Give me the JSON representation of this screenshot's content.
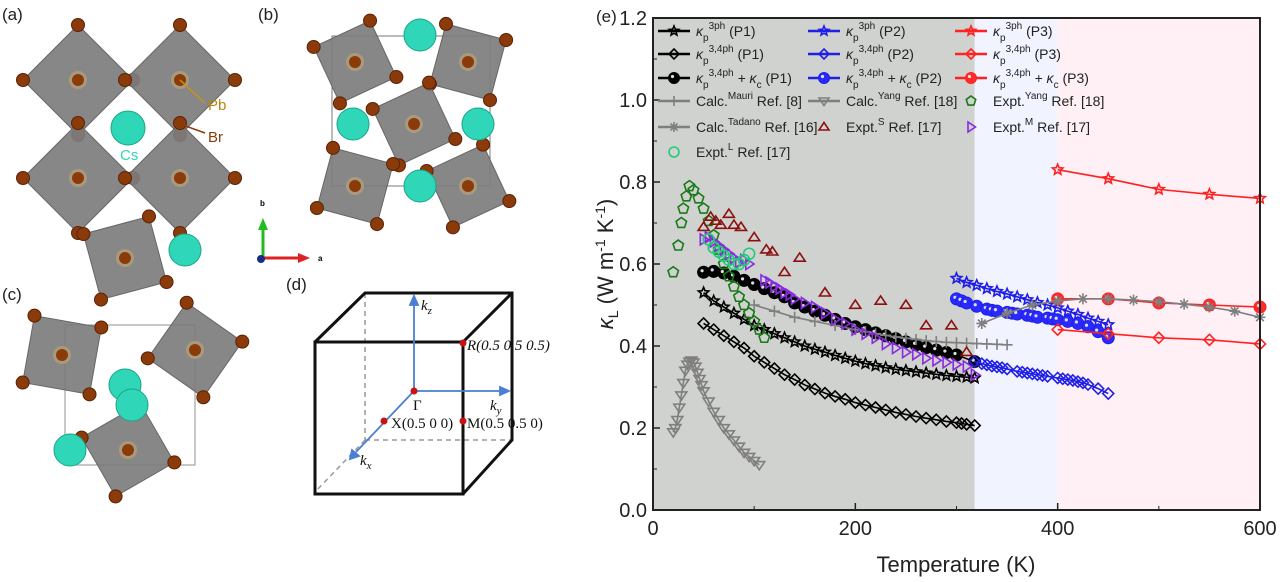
{
  "panels": {
    "a": {
      "label": "(a)",
      "atom_labels": {
        "pb": "Pb",
        "br": "Br",
        "cs": "Cs"
      }
    },
    "b": {
      "label": "(b)",
      "axis_labels": {
        "b": "b",
        "a": "a"
      }
    },
    "c": {
      "label": "(c)"
    },
    "d": {
      "label": "(d)",
      "points": {
        "gamma": "Γ",
        "r": "R(0.5 0.5 0.5)",
        "m": "M(0.5 0.5 0)",
        "x": "X(0.5 0 0)"
      },
      "axes": {
        "kz": "z",
        "ky": "y",
        "kx": "x",
        "k": "k"
      }
    },
    "e": {
      "label": "(e)"
    }
  },
  "colors": {
    "p1": "#000000",
    "p2": "#1f1fe6",
    "p3": "#ff2222",
    "calc": "#7f7f7f",
    "expt_yang": "#1a7a1a",
    "expt_s": "#8b1010",
    "expt_m": "#8a2be2",
    "expt_l": "#22cc77",
    "region1": "#d0d2cf",
    "region2": "#f1f3ff",
    "region3": "#fff0f5"
  },
  "chart_data": {
    "type": "scatter",
    "xlabel": "Temperature (K)",
    "ylabel_parts": {
      "main": "κ",
      "sub": "L",
      "unit": " (W m",
      "sup1": "-1",
      "mid": " K",
      "sup2": "-1",
      "end": ")"
    },
    "xlim": [
      0,
      600
    ],
    "ylim": [
      0,
      1.2
    ],
    "xticks": [
      "0",
      "200",
      "400",
      "600"
    ],
    "xtick_values": [
      0,
      200,
      400,
      600
    ],
    "yticks": [
      "0.0",
      "0.2",
      "0.4",
      "0.6",
      "0.8",
      "1.0",
      "1.2"
    ],
    "ytick_values": [
      0,
      0.2,
      0.4,
      0.6,
      0.8,
      1.0,
      1.2
    ],
    "regions": [
      {
        "from": 0,
        "to": 318,
        "color": "region1"
      },
      {
        "from": 318,
        "to": 400,
        "color": "region2"
      },
      {
        "from": 400,
        "to": 600,
        "color": "region3"
      }
    ],
    "series": [
      {
        "name": "κp3ph (P1)",
        "label": [
          [
            "κ"
          ],
          [
            "p",
            "sub"
          ],
          [
            "3ph",
            "sup"
          ],
          [
            " (P1)"
          ]
        ],
        "color": "p1",
        "marker": "star",
        "line": true,
        "fill": "none",
        "x": [
          50,
          60,
          70,
          80,
          90,
          100,
          110,
          120,
          130,
          140,
          150,
          160,
          170,
          180,
          190,
          200,
          210,
          220,
          230,
          240,
          250,
          260,
          270,
          280,
          290,
          300,
          310,
          318
        ],
        "y": [
          0.53,
          0.51,
          0.495,
          0.48,
          0.465,
          0.45,
          0.44,
          0.43,
          0.42,
          0.41,
          0.4,
          0.392,
          0.385,
          0.377,
          0.37,
          0.363,
          0.357,
          0.352,
          0.347,
          0.343,
          0.34,
          0.337,
          0.334,
          0.331,
          0.328,
          0.326,
          0.324,
          0.322
        ]
      },
      {
        "name": "κp3,4ph (P1)",
        "label": [
          [
            "κ"
          ],
          [
            "p",
            "sub"
          ],
          [
            "3,4ph",
            "sup"
          ],
          [
            " (P1)"
          ]
        ],
        "color": "p1",
        "marker": "diamond",
        "line": true,
        "fill": "none",
        "x": [
          50,
          60,
          70,
          80,
          90,
          100,
          110,
          120,
          130,
          140,
          150,
          160,
          170,
          180,
          190,
          200,
          210,
          220,
          230,
          240,
          250,
          260,
          270,
          280,
          290,
          300,
          305,
          310,
          318
        ],
        "y": [
          0.455,
          0.44,
          0.425,
          0.41,
          0.395,
          0.375,
          0.36,
          0.345,
          0.33,
          0.318,
          0.305,
          0.295,
          0.285,
          0.277,
          0.27,
          0.262,
          0.256,
          0.25,
          0.244,
          0.238,
          0.233,
          0.228,
          0.224,
          0.22,
          0.216,
          0.213,
          0.211,
          0.209,
          0.206
        ]
      },
      {
        "name": "κp3,4ph + κc (P1)",
        "label": [
          [
            "κ"
          ],
          [
            "p",
            "sub"
          ],
          [
            "3,4ph",
            "sup"
          ],
          [
            " + κ"
          ],
          [
            "c",
            "sub"
          ],
          [
            " (P1)"
          ]
        ],
        "color": "p1",
        "marker": "sphere",
        "line": true,
        "fill": "#000",
        "x": [
          50,
          60,
          70,
          80,
          90,
          100,
          110,
          120,
          130,
          140,
          150,
          160,
          170,
          180,
          190,
          200,
          210,
          220,
          230,
          240,
          250,
          260,
          270,
          280,
          290,
          300,
          318
        ],
        "y": [
          0.58,
          0.582,
          0.578,
          0.57,
          0.56,
          0.55,
          0.54,
          0.53,
          0.52,
          0.505,
          0.495,
          0.485,
          0.475,
          0.465,
          0.455,
          0.447,
          0.44,
          0.432,
          0.425,
          0.418,
          0.41,
          0.403,
          0.396,
          0.39,
          0.384,
          0.378,
          0.362
        ]
      },
      {
        "name": "κp3ph (P2)",
        "label": [
          [
            "κ"
          ],
          [
            "p",
            "sub"
          ],
          [
            "3ph",
            "sup"
          ],
          [
            " (P2)"
          ]
        ],
        "color": "p2",
        "marker": "star",
        "line": true,
        "fill": "none",
        "x": [
          300,
          310,
          320,
          330,
          340,
          350,
          360,
          370,
          380,
          390,
          400,
          410,
          420,
          430,
          440,
          450
        ],
        "y": [
          0.565,
          0.555,
          0.548,
          0.54,
          0.533,
          0.527,
          0.52,
          0.513,
          0.506,
          0.5,
          0.493,
          0.485,
          0.477,
          0.468,
          0.46,
          0.452
        ]
      },
      {
        "name": "κp3,4ph (P2)",
        "label": [
          [
            "κ"
          ],
          [
            "p",
            "sub"
          ],
          [
            "3,4ph",
            "sup"
          ],
          [
            " (P2)"
          ]
        ],
        "color": "p2",
        "marker": "diamond",
        "line": true,
        "fill": "none",
        "x": [
          318,
          325,
          330,
          335,
          340,
          345,
          350,
          360,
          365,
          370,
          375,
          380,
          385,
          390,
          400,
          405,
          410,
          415,
          420,
          425,
          430,
          440,
          450
        ],
        "y": [
          0.362,
          0.357,
          0.354,
          0.351,
          0.349,
          0.347,
          0.344,
          0.338,
          0.336,
          0.334,
          0.332,
          0.33,
          0.328,
          0.326,
          0.322,
          0.32,
          0.318,
          0.316,
          0.313,
          0.31,
          0.306,
          0.296,
          0.284
        ]
      },
      {
        "name": "κp3,4ph + κc (P2)",
        "label": [
          [
            "κ"
          ],
          [
            "p",
            "sub"
          ],
          [
            "3,4ph",
            "sup"
          ],
          [
            " + κ"
          ],
          [
            "c",
            "sub"
          ],
          [
            " (P2)"
          ]
        ],
        "color": "p2",
        "marker": "sphere",
        "line": true,
        "fill": "#2a2aff",
        "x": [
          300,
          305,
          310,
          320,
          330,
          335,
          340,
          350,
          355,
          360,
          370,
          375,
          380,
          390,
          395,
          400,
          410,
          420,
          430,
          440,
          450
        ],
        "y": [
          0.515,
          0.51,
          0.505,
          0.497,
          0.49,
          0.487,
          0.485,
          0.482,
          0.48,
          0.478,
          0.475,
          0.473,
          0.47,
          0.468,
          0.466,
          0.464,
          0.46,
          0.455,
          0.447,
          0.435,
          0.42
        ]
      },
      {
        "name": "κp3ph (P3)",
        "label": [
          [
            "κ"
          ],
          [
            "p",
            "sub"
          ],
          [
            "3ph",
            "sup"
          ],
          [
            " (P3)"
          ]
        ],
        "color": "p3",
        "marker": "star",
        "line": true,
        "fill": "none",
        "x": [
          400,
          450,
          500,
          550,
          600
        ],
        "y": [
          0.83,
          0.808,
          0.782,
          0.77,
          0.76
        ]
      },
      {
        "name": "κp3,4ph (P3)",
        "label": [
          [
            "κ"
          ],
          [
            "p",
            "sub"
          ],
          [
            "3,4ph",
            "sup"
          ],
          [
            " (P3)"
          ]
        ],
        "color": "p3",
        "marker": "diamond",
        "line": true,
        "fill": "none",
        "x": [
          400,
          450,
          500,
          550,
          600
        ],
        "y": [
          0.44,
          0.43,
          0.42,
          0.415,
          0.405
        ]
      },
      {
        "name": "κp3,4ph + κc (P3)",
        "label": [
          [
            "κ"
          ],
          [
            "p",
            "sub"
          ],
          [
            "3,4ph",
            "sup"
          ],
          [
            " + κ"
          ],
          [
            "c",
            "sub"
          ],
          [
            " (P3)"
          ]
        ],
        "color": "p3",
        "marker": "sphere",
        "line": true,
        "fill": "#ff2a2a",
        "x": [
          400,
          450,
          500,
          550,
          600
        ],
        "y": [
          0.515,
          0.515,
          0.505,
          0.5,
          0.495
        ]
      },
      {
        "name": "Calc.Mauri Ref. [8]",
        "label": [
          [
            "Calc."
          ],
          [
            "Mauri",
            "sup"
          ],
          [
            " Ref. [8]"
          ]
        ],
        "color": "calc",
        "marker": "plus",
        "line": true,
        "fill": "none",
        "x": [
          100,
          120,
          140,
          160,
          180,
          200,
          210,
          220,
          230,
          240,
          250,
          260,
          270,
          280,
          290,
          300,
          310,
          320,
          330,
          340,
          350
        ],
        "y": [
          0.5,
          0.485,
          0.47,
          0.46,
          0.45,
          0.44,
          0.435,
          0.43,
          0.426,
          0.422,
          0.419,
          0.416,
          0.413,
          0.411,
          0.409,
          0.408,
          0.407,
          0.406,
          0.405,
          0.404,
          0.403
        ]
      },
      {
        "name": "Calc.Yang Ref. [18]",
        "label": [
          [
            "Calc."
          ],
          [
            "Yang",
            "sup"
          ],
          [
            " Ref. [18]"
          ]
        ],
        "color": "calc",
        "marker": "tridown",
        "line": true,
        "fill": "none",
        "x": [
          20,
          22,
          24,
          26,
          28,
          30,
          32,
          34,
          36,
          38,
          40,
          42,
          44,
          46,
          48,
          50,
          55,
          60,
          65,
          70,
          75,
          80,
          85,
          90,
          95,
          100,
          105
        ],
        "y": [
          0.19,
          0.2,
          0.22,
          0.25,
          0.28,
          0.31,
          0.34,
          0.355,
          0.362,
          0.365,
          0.36,
          0.35,
          0.335,
          0.32,
          0.305,
          0.29,
          0.265,
          0.24,
          0.22,
          0.2,
          0.185,
          0.17,
          0.155,
          0.14,
          0.13,
          0.12,
          0.11
        ]
      },
      {
        "name": "Expt.Yang Ref. [18]",
        "label": [
          [
            "Expt."
          ],
          [
            "Yang",
            "sup"
          ],
          [
            " Ref. [18]"
          ]
        ],
        "color": "expt_yang",
        "marker": "pentagon",
        "line": false,
        "fill": "none",
        "x": [
          20,
          25,
          28,
          30,
          33,
          36,
          40,
          45,
          50,
          55,
          60,
          65,
          70,
          75,
          80,
          85,
          90,
          95,
          100,
          105,
          110
        ],
        "y": [
          0.58,
          0.645,
          0.7,
          0.735,
          0.765,
          0.79,
          0.78,
          0.76,
          0.735,
          0.705,
          0.67,
          0.635,
          0.6,
          0.57,
          0.545,
          0.52,
          0.5,
          0.48,
          0.46,
          0.44,
          0.42
        ]
      },
      {
        "name": "Calc.Tadano Ref. [16]",
        "label": [
          [
            "Calc."
          ],
          [
            "Tadano",
            "sup"
          ],
          [
            " Ref. [16]"
          ]
        ],
        "color": "calc",
        "marker": "asterisk",
        "line": true,
        "fill": "none",
        "x": [
          325,
          350,
          375,
          400,
          425,
          450,
          475,
          500,
          525,
          550,
          575,
          600
        ],
        "y": [
          0.455,
          0.48,
          0.5,
          0.51,
          0.515,
          0.515,
          0.512,
          0.508,
          0.502,
          0.495,
          0.485,
          0.47
        ]
      },
      {
        "name": "Expt.S Ref. [17]",
        "label": [
          [
            "Expt."
          ],
          [
            "S",
            "sup"
          ],
          [
            " Ref. [17]"
          ]
        ],
        "color": "expt_s",
        "marker": "triup",
        "line": false,
        "fill": "none",
        "x": [
          50,
          57,
          62,
          67,
          75,
          80,
          87,
          100,
          112,
          118,
          130,
          145,
          170,
          200,
          225,
          250,
          270,
          295,
          310
        ],
        "y": [
          0.69,
          0.715,
          0.705,
          0.695,
          0.722,
          0.695,
          0.69,
          0.665,
          0.635,
          0.63,
          0.58,
          0.615,
          0.53,
          0.5,
          0.51,
          0.5,
          0.45,
          0.45,
          0.385
        ]
      },
      {
        "name": "Expt.M Ref. [17]",
        "label": [
          [
            "Expt."
          ],
          [
            "M",
            "sup"
          ],
          [
            " Ref. [17]"
          ]
        ],
        "color": "expt_m",
        "marker": "triright",
        "line": false,
        "fill": "none",
        "x": [
          50,
          55,
          60,
          65,
          70,
          75,
          80,
          85,
          90,
          95,
          110,
          115,
          120,
          125,
          130,
          135,
          140,
          150,
          160,
          170,
          180,
          190,
          200,
          210,
          220,
          230,
          240,
          250,
          260,
          270,
          280,
          290,
          300,
          310,
          318
        ],
        "y": [
          0.66,
          0.665,
          0.655,
          0.645,
          0.635,
          0.625,
          0.615,
          0.605,
          0.61,
          0.6,
          0.56,
          0.555,
          0.545,
          0.54,
          0.53,
          0.525,
          0.515,
          0.505,
          0.495,
          0.48,
          0.465,
          0.455,
          0.44,
          0.43,
          0.42,
          0.405,
          0.395,
          0.385,
          0.38,
          0.37,
          0.365,
          0.36,
          0.355,
          0.35,
          0.33
        ]
      },
      {
        "name": "Expt.L Ref. [17]",
        "label": [
          [
            "Expt."
          ],
          [
            "L",
            "sup"
          ],
          [
            " Ref. [17]"
          ]
        ],
        "color": "expt_l",
        "marker": "circle",
        "line": false,
        "fill": "none",
        "x": [
          55,
          60,
          65,
          70,
          75,
          80,
          85,
          90,
          95
        ],
        "y": [
          0.66,
          0.64,
          0.63,
          0.62,
          0.61,
          0.6,
          0.6,
          0.61,
          0.625
        ]
      }
    ]
  }
}
